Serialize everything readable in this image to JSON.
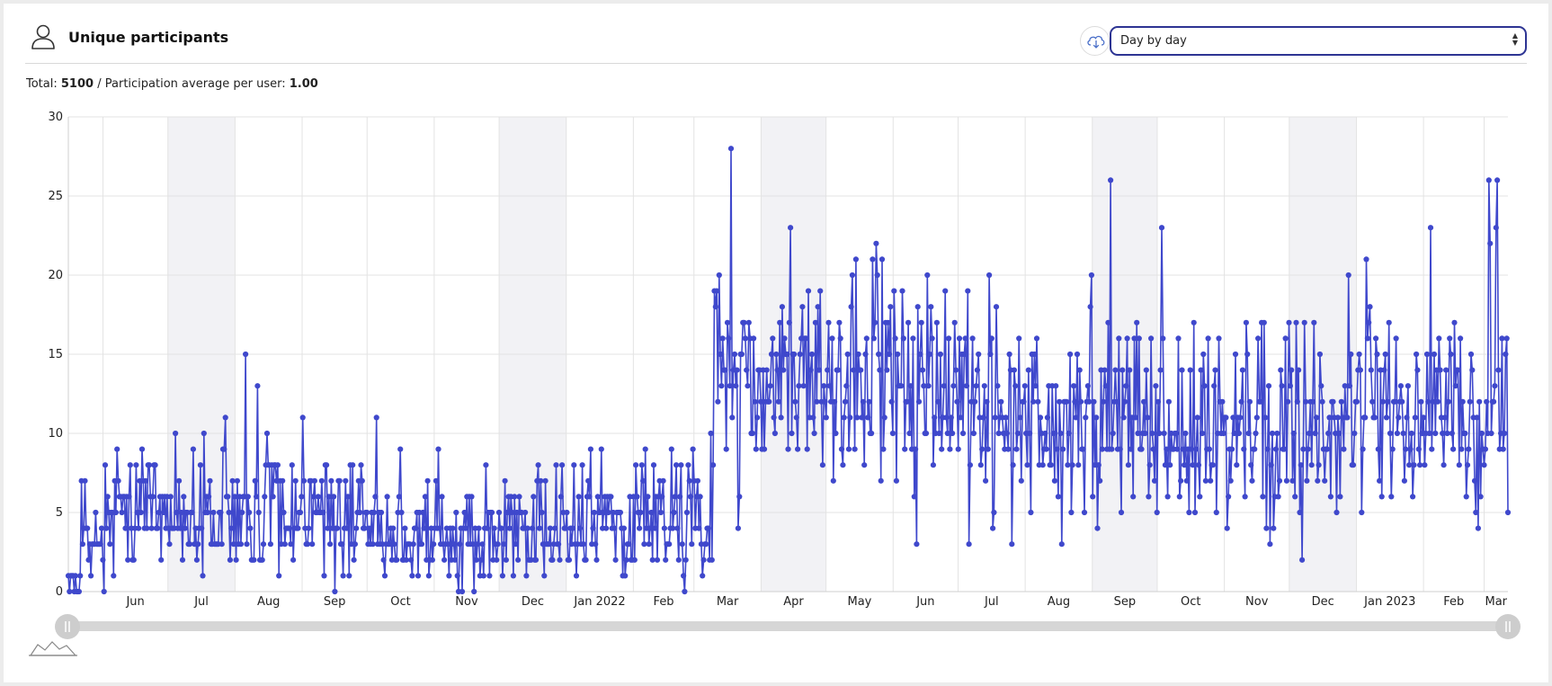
{
  "header": {
    "title": "Unique participants",
    "user_icon": "user-icon",
    "download_icon": "cloud-download-icon",
    "period_select": {
      "value": "Day by day"
    }
  },
  "summary": {
    "total_label": "Total:",
    "total_value": "5100",
    "separator": "/",
    "average_label": "Participation average per user:",
    "average_value": "1.00"
  },
  "colors": {
    "series": "#3f48cc",
    "band": "#f2f2f5",
    "grid": "#e3e3e3",
    "select_border": "#2d3493"
  },
  "navigator": {
    "handle_left_icon": "drag-handle-icon",
    "handle_right_icon": "drag-handle-icon",
    "reset_icon": "mini-sparkline-icon"
  },
  "chart_data": {
    "type": "line",
    "title": "",
    "xlabel": "",
    "ylabel": "",
    "ylim": [
      0,
      30
    ],
    "y_ticks": [
      0,
      5,
      10,
      15,
      20,
      25,
      30
    ],
    "grid": true,
    "legend": "none",
    "x_start": "2021-05-16",
    "x_end": "2023-03-12",
    "x_tick_labels": [
      "Jun",
      "Jul",
      "Aug",
      "Sep",
      "Oct",
      "Nov",
      "Dec",
      "Jan 2022",
      "Feb",
      "Mar",
      "Apr",
      "May",
      "Jun",
      "Jul",
      "Aug",
      "Sep",
      "Oct",
      "Nov",
      "Dec",
      "Jan 2023",
      "Feb",
      "Mar"
    ],
    "series": [
      {
        "values": [
          1,
          0,
          1,
          1,
          1,
          0,
          1,
          0,
          0,
          0,
          1,
          7,
          3,
          4,
          7,
          4,
          4,
          2,
          3,
          1,
          3,
          3,
          3,
          5,
          3,
          3,
          3,
          3,
          4,
          2,
          0,
          8,
          4,
          6,
          5,
          3,
          5,
          5,
          1,
          7,
          5,
          9,
          7,
          6,
          6,
          5,
          6,
          6,
          4,
          6,
          2,
          6,
          8,
          4,
          2,
          2,
          4,
          8,
          5,
          4,
          7,
          5,
          9,
          7,
          4,
          7,
          4,
          8,
          8,
          6,
          4,
          6,
          8,
          8,
          4,
          4,
          5,
          6,
          2,
          6,
          5,
          6,
          4,
          6,
          4,
          3,
          6,
          4,
          4,
          4,
          10,
          5,
          4,
          7,
          4,
          5,
          2,
          6,
          4,
          5,
          5,
          3,
          3,
          5,
          5,
          9,
          3,
          4,
          2,
          3,
          4,
          8,
          4,
          1,
          10,
          5,
          6,
          5,
          6,
          7,
          3,
          3,
          5,
          3,
          3,
          3,
          3,
          5,
          5,
          3,
          9,
          9,
          11,
          6,
          6,
          5,
          2,
          4,
          7,
          3,
          6,
          2,
          7,
          3,
          6,
          3,
          5,
          6,
          6,
          15,
          3,
          6,
          5,
          4,
          2,
          2,
          2,
          7,
          6,
          13,
          5,
          2,
          2,
          2,
          3,
          6,
          8,
          10,
          8,
          8,
          3,
          8,
          6,
          8,
          8,
          7,
          8,
          1,
          7,
          3,
          7,
          5,
          3,
          4,
          4,
          4,
          4,
          3,
          8,
          2,
          4,
          7,
          4,
          4,
          5,
          5,
          6,
          11,
          7,
          4,
          3,
          3,
          4,
          7,
          7,
          3,
          6,
          7,
          5,
          5,
          6,
          5,
          5,
          7,
          5,
          1,
          8,
          8,
          4,
          6,
          3,
          7,
          4,
          6,
          0,
          4,
          4,
          7,
          7,
          3,
          3,
          1,
          4,
          7,
          4,
          6,
          1,
          8,
          3,
          8,
          2,
          3,
          4,
          5,
          7,
          5,
          8,
          7,
          4,
          4,
          5,
          5,
          3,
          4,
          3,
          5,
          3,
          5,
          6,
          11,
          3,
          5,
          3,
          5,
          3,
          2,
          1,
          3,
          6,
          3,
          3,
          4,
          2,
          4,
          3,
          2,
          2,
          5,
          6,
          9,
          5,
          2,
          2,
          4,
          2,
          3,
          3,
          3,
          2,
          1,
          3,
          4,
          4,
          5,
          1,
          5,
          3,
          3,
          5,
          4,
          6,
          2,
          7,
          1,
          2,
          4,
          2,
          3,
          4,
          7,
          4,
          9,
          4,
          3,
          6,
          3,
          2,
          3,
          4,
          3,
          1,
          4,
          2,
          4,
          3,
          2,
          5,
          1,
          0,
          3,
          4,
          0,
          4,
          5,
          4,
          6,
          3,
          6,
          3,
          6,
          3,
          0,
          4,
          2,
          3,
          4,
          1,
          2,
          3,
          1,
          4,
          8,
          4,
          5,
          1,
          5,
          5,
          2,
          4,
          3,
          2,
          3,
          5,
          4,
          4,
          1,
          3,
          7,
          2,
          5,
          6,
          4,
          6,
          5,
          1,
          6,
          3,
          5,
          2,
          6,
          5,
          5,
          4,
          4,
          5,
          1,
          4,
          2,
          2,
          2,
          4,
          6,
          2,
          2,
          7,
          8,
          4,
          7,
          5,
          3,
          1,
          7,
          3,
          3,
          3,
          4,
          2,
          2,
          3,
          4,
          8,
          3,
          3,
          2,
          6,
          8,
          5,
          4,
          4,
          5,
          2,
          2,
          4,
          3,
          4,
          8,
          3,
          1,
          3,
          6,
          4,
          3,
          8,
          3,
          2,
          2,
          6,
          7,
          6,
          9,
          3,
          4,
          5,
          3,
          2,
          6,
          5,
          5,
          9,
          4,
          5,
          6,
          4,
          6,
          5,
          6,
          6,
          4,
          5,
          4,
          2,
          5,
          5,
          5,
          5,
          4,
          1,
          4,
          1,
          2,
          3,
          3,
          6,
          2,
          2,
          6,
          2,
          8,
          6,
          5,
          4,
          5,
          8,
          7,
          3,
          9,
          4,
          6,
          3,
          4,
          5,
          2,
          8,
          4,
          6,
          2,
          6,
          7,
          5,
          6,
          7,
          4,
          2,
          3,
          3,
          3,
          4,
          9,
          4,
          5,
          6,
          8,
          4,
          2,
          6,
          8,
          3,
          1,
          0,
          2,
          5,
          8,
          7,
          6,
          3,
          9,
          7,
          4,
          6,
          7,
          4,
          6,
          3,
          1,
          2,
          3,
          3,
          4,
          4,
          2,
          10,
          2,
          8,
          19,
          18,
          19,
          12,
          20,
          15,
          13,
          16,
          14,
          14,
          9,
          17,
          16,
          13,
          28,
          11,
          14,
          15,
          13,
          14,
          4,
          6,
          15,
          15,
          17,
          17,
          16,
          14,
          13,
          17,
          16,
          10,
          10,
          16,
          12,
          9,
          11,
          14,
          14,
          12,
          9,
          14,
          9,
          12,
          14,
          12,
          12,
          13,
          15,
          16,
          11,
          10,
          15,
          14,
          12,
          17,
          11,
          18,
          14,
          16,
          15,
          15,
          9,
          17,
          23,
          10,
          15,
          15,
          12,
          11,
          9,
          13,
          15,
          16,
          18,
          13,
          16,
          16,
          9,
          19,
          11,
          14,
          15,
          11,
          10,
          17,
          12,
          18,
          14,
          19,
          12,
          8,
          13,
          12,
          11,
          14,
          17,
          13,
          12,
          16,
          7,
          12,
          10,
          14,
          14,
          17,
          16,
          9,
          8,
          11,
          12,
          13,
          15,
          9,
          11,
          18,
          20,
          14,
          9,
          21,
          11,
          15,
          14,
          14,
          11,
          12,
          8,
          15,
          16,
          11,
          12,
          10,
          10,
          21,
          16,
          17,
          22,
          20,
          15,
          14,
          7,
          21,
          9,
          11,
          17,
          14,
          17,
          15,
          18,
          12,
          10,
          19,
          16,
          7,
          15,
          13,
          13,
          13,
          19,
          16,
          9,
          12,
          12,
          17,
          10,
          13,
          9,
          16,
          6,
          9,
          3,
          18,
          12,
          15,
          17,
          14,
          13,
          10,
          10,
          20,
          13,
          15,
          18,
          16,
          8,
          11,
          10,
          17,
          12,
          10,
          15,
          9,
          11,
          13,
          19,
          11,
          10,
          16,
          9,
          11,
          10,
          13,
          17,
          14,
          12,
          9,
          16,
          11,
          15,
          10,
          15,
          16,
          13,
          19,
          3,
          8,
          12,
          16,
          10,
          12,
          13,
          14,
          15,
          11,
          8,
          9,
          11,
          13,
          7,
          12,
          9,
          20,
          15,
          16,
          4,
          5,
          11,
          18,
          13,
          10,
          11,
          12,
          11,
          10,
          9,
          11,
          10,
          9,
          15,
          14,
          3,
          8,
          14,
          13,
          9,
          10,
          16,
          11,
          7,
          12,
          12,
          13,
          10,
          8,
          14,
          10,
          5,
          15,
          12,
          15,
          13,
          16,
          12,
          8,
          11,
          10,
          8,
          9,
          10,
          9,
          11,
          13,
          8,
          8,
          13,
          10,
          7,
          13,
          9,
          6,
          12,
          10,
          3,
          9,
          12,
          12,
          12,
          8,
          10,
          15,
          5,
          8,
          13,
          12,
          11,
          15,
          8,
          14,
          12,
          9,
          9,
          5,
          11,
          12,
          13,
          12,
          18,
          20,
          6,
          12,
          8,
          11,
          4,
          8,
          7,
          14,
          9,
          12,
          14,
          13,
          9,
          17,
          9,
          26,
          9,
          10,
          12,
          14,
          12,
          9,
          16,
          9,
          5,
          14,
          11,
          12,
          13,
          16,
          8,
          14,
          9,
          11,
          6,
          16,
          11,
          17,
          10,
          16,
          9,
          9,
          10,
          12,
          10,
          14,
          11,
          6,
          8,
          16,
          10,
          9,
          7,
          13,
          5,
          12,
          10,
          14,
          23,
          16,
          10,
          8,
          9,
          6,
          12,
          8,
          10,
          9,
          9,
          10,
          10,
          9,
          16,
          6,
          7,
          14,
          9,
          8,
          10,
          7,
          9,
          5,
          14,
          9,
          8,
          17,
          5,
          9,
          11,
          8,
          6,
          14,
          10,
          15,
          13,
          7,
          9,
          16,
          9,
          7,
          8,
          8,
          13,
          14,
          5,
          10,
          16,
          12,
          10,
          12,
          10,
          11,
          11,
          4,
          6,
          9,
          7,
          9,
          11,
          10,
          15,
          8,
          11,
          10,
          11,
          12,
          14,
          9,
          6,
          17,
          15,
          10,
          12,
          8,
          7,
          9,
          9,
          10,
          11,
          16,
          12,
          12,
          17,
          6,
          17,
          11,
          4,
          9,
          13,
          3,
          8,
          10,
          4,
          6,
          9,
          10,
          6,
          7,
          14,
          13,
          9,
          9,
          16,
          7,
          12,
          17,
          13,
          14,
          7,
          10,
          6,
          17,
          12,
          14,
          5,
          8,
          2,
          9,
          17,
          12,
          7,
          9,
          10,
          12,
          8,
          12,
          17,
          10,
          11,
          7,
          8,
          15,
          13,
          12,
          9,
          7,
          9,
          9,
          10,
          11,
          6,
          12,
          12,
          11,
          10,
          5,
          11,
          10,
          6,
          12,
          11,
          9,
          13,
          11,
          11,
          20,
          13,
          15,
          8,
          8,
          10,
          12,
          12,
          14,
          15,
          14,
          5,
          9,
          11,
          11,
          21,
          16,
          17,
          18,
          14,
          12,
          11,
          11,
          16,
          15,
          9,
          7,
          14,
          6,
          12,
          14,
          15,
          11,
          12,
          17,
          10,
          6,
          9,
          12,
          12,
          16,
          10,
          11,
          12,
          13,
          12,
          10,
          7,
          9,
          11,
          13,
          8,
          9,
          10,
          6,
          8,
          11,
          15,
          14,
          9,
          8,
          12,
          10,
          11,
          8,
          10,
          15,
          12,
          10,
          23,
          9,
          12,
          15,
          10,
          14,
          12,
          16,
          14,
          11,
          10,
          8,
          11,
          14,
          10,
          12,
          16,
          15,
          10,
          9,
          17,
          13,
          14,
          14,
          8,
          16,
          9,
          12,
          10,
          10,
          6,
          8,
          9,
          12,
          15,
          14,
          11,
          7,
          5,
          11,
          4,
          12,
          6,
          10,
          9,
          8,
          9,
          12,
          10,
          26,
          22,
          10,
          12,
          12,
          13,
          23,
          26,
          14,
          9,
          10,
          16,
          9,
          10,
          15,
          16,
          5
        ]
      }
    ]
  }
}
